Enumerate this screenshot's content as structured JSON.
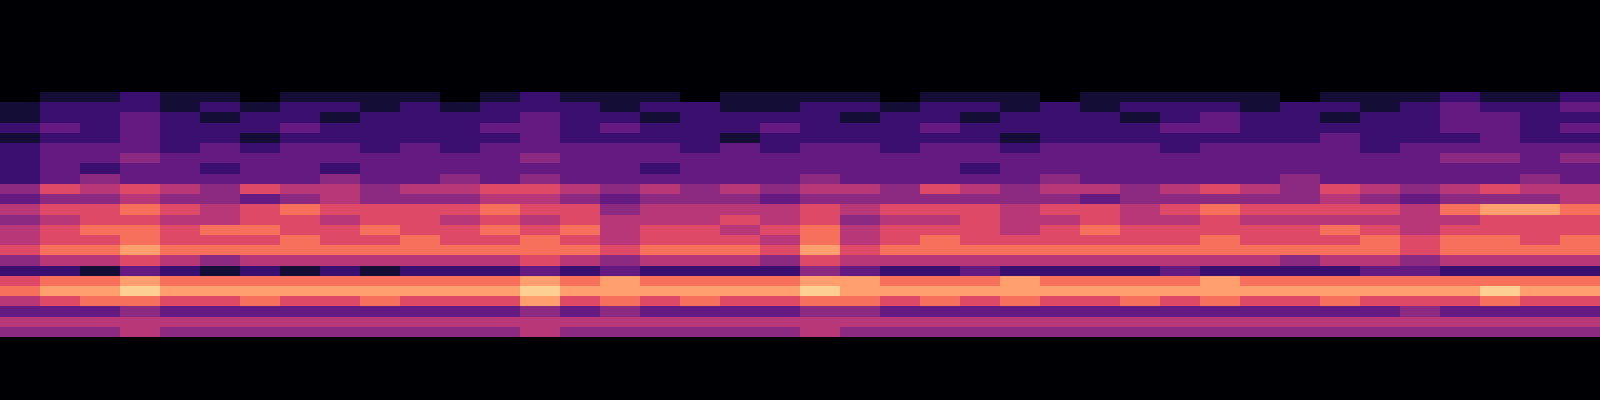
{
  "chart_data": {
    "type": "heatmap",
    "tick_labels": false,
    "color": "magma",
    "zlim": [
      0,
      10
    ],
    "cells": [
      [
        0,
        1,
        1,
        2,
        1,
        1,
        0,
        1,
        1,
        1,
        1,
        0,
        1,
        2,
        1,
        1,
        1,
        0,
        1,
        1,
        1,
        1,
        0,
        1,
        1,
        1,
        0,
        1,
        1,
        1,
        1,
        1,
        0,
        1,
        1,
        1,
        2,
        1,
        1,
        2
      ],
      [
        1,
        2,
        2,
        2,
        1,
        2,
        1,
        2,
        2,
        1,
        2,
        1,
        2,
        2,
        2,
        1,
        2,
        2,
        1,
        1,
        2,
        2,
        1,
        2,
        2,
        1,
        2,
        1,
        2,
        2,
        2,
        1,
        2,
        2,
        1,
        2,
        3,
        2,
        2,
        3
      ],
      [
        1,
        2,
        2,
        3,
        2,
        1,
        2,
        2,
        1,
        2,
        2,
        2,
        2,
        3,
        2,
        2,
        1,
        2,
        2,
        2,
        2,
        1,
        2,
        2,
        1,
        2,
        2,
        2,
        1,
        2,
        3,
        2,
        2,
        1,
        2,
        2,
        3,
        3,
        2,
        2
      ],
      [
        2,
        3,
        2,
        3,
        2,
        2,
        2,
        3,
        2,
        2,
        2,
        2,
        3,
        3,
        2,
        3,
        2,
        2,
        2,
        3,
        2,
        2,
        2,
        3,
        2,
        2,
        2,
        2,
        2,
        3,
        3,
        2,
        2,
        2,
        2,
        2,
        3,
        3,
        2,
        3
      ],
      [
        1,
        2,
        2,
        3,
        2,
        2,
        1,
        2,
        2,
        2,
        2,
        2,
        2,
        3,
        2,
        2,
        2,
        2,
        1,
        2,
        2,
        2,
        2,
        2,
        2,
        1,
        2,
        2,
        2,
        2,
        2,
        2,
        2,
        3,
        2,
        2,
        2,
        3,
        2,
        2
      ],
      [
        2,
        3,
        3,
        3,
        2,
        3,
        2,
        3,
        3,
        2,
        3,
        2,
        3,
        3,
        3,
        3,
        3,
        2,
        3,
        2,
        3,
        3,
        2,
        3,
        3,
        2,
        3,
        3,
        3,
        2,
        3,
        3,
        3,
        3,
        2,
        3,
        3,
        3,
        3,
        3
      ],
      [
        2,
        3,
        3,
        4,
        3,
        3,
        3,
        3,
        3,
        3,
        3,
        3,
        3,
        4,
        3,
        3,
        3,
        3,
        3,
        3,
        3,
        3,
        3,
        3,
        3,
        3,
        3,
        3,
        3,
        3,
        3,
        3,
        3,
        3,
        3,
        3,
        4,
        4,
        3,
        4
      ],
      [
        2,
        3,
        2,
        3,
        3,
        2,
        3,
        3,
        2,
        3,
        3,
        3,
        3,
        3,
        3,
        3,
        2,
        3,
        3,
        3,
        3,
        3,
        3,
        3,
        2,
        3,
        3,
        3,
        3,
        3,
        3,
        3,
        3,
        3,
        3,
        3,
        3,
        3,
        3,
        3
      ],
      [
        2,
        3,
        4,
        3,
        3,
        3,
        3,
        3,
        4,
        3,
        3,
        4,
        3,
        4,
        3,
        3,
        3,
        3,
        3,
        3,
        4,
        3,
        3,
        3,
        3,
        3,
        4,
        3,
        3,
        3,
        3,
        3,
        4,
        3,
        3,
        3,
        3,
        3,
        4,
        3
      ],
      [
        4,
        6,
        5,
        6,
        5,
        4,
        6,
        5,
        5,
        4,
        5,
        5,
        6,
        6,
        5,
        4,
        5,
        4,
        5,
        4,
        5,
        5,
        4,
        6,
        5,
        4,
        5,
        5,
        4,
        5,
        6,
        5,
        4,
        6,
        5,
        4,
        5,
        6,
        5,
        5
      ],
      [
        3,
        4,
        4,
        5,
        4,
        4,
        3,
        4,
        5,
        4,
        4,
        4,
        5,
        5,
        4,
        3,
        4,
        4,
        4,
        3,
        4,
        4,
        4,
        4,
        4,
        4,
        4,
        3,
        4,
        4,
        4,
        4,
        4,
        5,
        4,
        3,
        4,
        4,
        4,
        5
      ],
      [
        5,
        6,
        6,
        7,
        6,
        5,
        6,
        7,
        6,
        6,
        6,
        6,
        7,
        6,
        6,
        4,
        5,
        5,
        5,
        5,
        6,
        5,
        6,
        6,
        6,
        5,
        6,
        6,
        5,
        6,
        7,
        6,
        6,
        6,
        6,
        5,
        7,
        8,
        8,
        7
      ],
      [
        4,
        5,
        6,
        6,
        5,
        5,
        6,
        6,
        5,
        6,
        6,
        5,
        6,
        5,
        6,
        5,
        5,
        5,
        6,
        5,
        6,
        4,
        5,
        5,
        6,
        5,
        5,
        6,
        5,
        5,
        6,
        5,
        5,
        5,
        5,
        5,
        5,
        6,
        6,
        6
      ],
      [
        5,
        6,
        7,
        7,
        6,
        7,
        7,
        6,
        6,
        7,
        6,
        6,
        7,
        6,
        7,
        5,
        6,
        6,
        5,
        6,
        7,
        5,
        6,
        6,
        6,
        5,
        6,
        7,
        6,
        6,
        6,
        6,
        6,
        7,
        6,
        5,
        6,
        6,
        6,
        6
      ],
      [
        5,
        6,
        6,
        7,
        6,
        6,
        6,
        7,
        6,
        6,
        7,
        6,
        6,
        7,
        6,
        5,
        6,
        6,
        6,
        5,
        7,
        5,
        6,
        7,
        6,
        6,
        6,
        6,
        6,
        6,
        7,
        6,
        6,
        6,
        7,
        6,
        7,
        7,
        6,
        7
      ],
      [
        6,
        7,
        7,
        8,
        7,
        7,
        7,
        7,
        7,
        7,
        7,
        7,
        7,
        7,
        7,
        6,
        7,
        7,
        7,
        6,
        8,
        6,
        7,
        7,
        7,
        7,
        7,
        7,
        7,
        7,
        7,
        7,
        7,
        7,
        7,
        6,
        7,
        7,
        7,
        7
      ],
      [
        4,
        5,
        5,
        6,
        5,
        4,
        5,
        5,
        5,
        5,
        5,
        5,
        5,
        6,
        5,
        4,
        5,
        5,
        5,
        4,
        6,
        5,
        5,
        5,
        5,
        5,
        5,
        5,
        5,
        5,
        5,
        5,
        4,
        5,
        5,
        4,
        5,
        5,
        5,
        5
      ],
      [
        2,
        2,
        1,
        3,
        2,
        1,
        2,
        1,
        2,
        1,
        2,
        2,
        2,
        3,
        2,
        3,
        2,
        2,
        2,
        2,
        4,
        3,
        2,
        2,
        3,
        2,
        2,
        2,
        2,
        3,
        2,
        2,
        2,
        2,
        3,
        3,
        2,
        2,
        2,
        2
      ],
      [
        6,
        7,
        7,
        8,
        7,
        7,
        7,
        7,
        7,
        7,
        7,
        7,
        7,
        8,
        7,
        8,
        7,
        7,
        7,
        7,
        8,
        8,
        7,
        7,
        7,
        8,
        7,
        7,
        7,
        7,
        8,
        7,
        7,
        7,
        7,
        7,
        7,
        7,
        7,
        7
      ],
      [
        7,
        8,
        8,
        9,
        8,
        8,
        8,
        8,
        8,
        8,
        8,
        8,
        8,
        9,
        8,
        8,
        8,
        8,
        8,
        8,
        9,
        8,
        8,
        8,
        8,
        8,
        8,
        8,
        8,
        8,
        8,
        8,
        8,
        8,
        8,
        8,
        8,
        9,
        8,
        8
      ],
      [
        5,
        6,
        7,
        7,
        6,
        6,
        7,
        6,
        6,
        7,
        6,
        6,
        6,
        8,
        6,
        7,
        6,
        7,
        6,
        6,
        7,
        7,
        6,
        7,
        6,
        7,
        6,
        6,
        7,
        6,
        7,
        6,
        6,
        7,
        6,
        6,
        6,
        7,
        6,
        6
      ],
      [
        3,
        3,
        3,
        4,
        3,
        3,
        3,
        3,
        3,
        3,
        3,
        3,
        3,
        4,
        3,
        4,
        3,
        3,
        3,
        3,
        4,
        4,
        3,
        3,
        3,
        3,
        3,
        3,
        3,
        3,
        3,
        3,
        3,
        3,
        3,
        4,
        3,
        3,
        3,
        3
      ],
      [
        5,
        5,
        5,
        5,
        5,
        5,
        5,
        5,
        5,
        5,
        5,
        5,
        5,
        5,
        5,
        5,
        5,
        5,
        5,
        5,
        5,
        5,
        5,
        5,
        5,
        5,
        5,
        5,
        5,
        5,
        5,
        5,
        5,
        5,
        5,
        5,
        5,
        5,
        5,
        5
      ],
      [
        4,
        4,
        4,
        5,
        4,
        4,
        4,
        4,
        4,
        4,
        4,
        4,
        4,
        5,
        4,
        4,
        4,
        4,
        4,
        4,
        5,
        4,
        4,
        4,
        4,
        4,
        4,
        4,
        4,
        4,
        4,
        4,
        4,
        4,
        4,
        4,
        4,
        4,
        4,
        4
      ]
    ]
  }
}
